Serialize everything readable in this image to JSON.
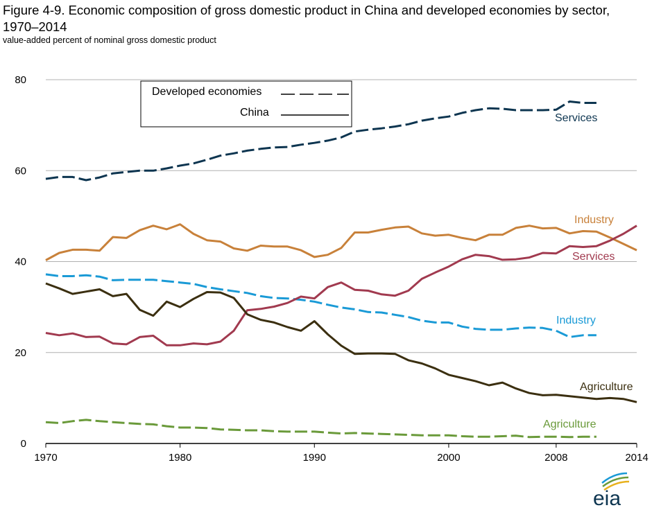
{
  "title": "Figure 4-9. Economic composition of gross domestic product in China and developed economies by sector, 1970–2014",
  "subtitle": "value-added percent of nominal gross domestic product",
  "logo_text": "eia",
  "colors": {
    "services_dev": "#0d3550",
    "services_china": "#a13a4f",
    "industry_dev": "#1a9ad6",
    "industry_china": "#c8813a",
    "agriculture_dev": "#6a9a3a",
    "agriculture_china": "#3b2f10",
    "grid": "#b0b0b0"
  },
  "chart_data": {
    "type": "line",
    "title": "Figure 4-9. Economic composition of gross domestic product in China and developed economies by sector, 1970–2014",
    "subtitle": "value-added percent of nominal gross domestic product",
    "xlabel": "",
    "ylabel": "",
    "xlim": [
      1970,
      2014
    ],
    "ylim": [
      0,
      80
    ],
    "x_ticks": [
      "1970",
      "1980",
      "1990",
      "2000",
      "2008",
      "2014"
    ],
    "y_ticks": [
      "0",
      "20",
      "40",
      "60",
      "80"
    ],
    "grid": "horizontal",
    "legend": {
      "placement": "top-left",
      "entries": [
        {
          "label": "Developed economies",
          "style": "dashed"
        },
        {
          "label": "China",
          "style": "solid"
        }
      ]
    },
    "series": [
      {
        "name": "Services",
        "group": "Developed economies",
        "style": "dashed",
        "color": "#0d3550",
        "x": [
          1970,
          1971,
          1972,
          1973,
          1974,
          1975,
          1976,
          1977,
          1978,
          1979,
          1980,
          1981,
          1982,
          1983,
          1984,
          1985,
          1986,
          1987,
          1988,
          1989,
          1990,
          1991,
          1992,
          1993,
          1994,
          1995,
          1996,
          1997,
          1998,
          1999,
          2000,
          2001,
          2002,
          2003,
          2004,
          2005,
          2006,
          2007,
          2008,
          2009,
          2010,
          2011
        ],
        "values": [
          58.2,
          58.6,
          58.6,
          57.9,
          58.5,
          59.4,
          59.7,
          60.0,
          60.0,
          60.5,
          61.1,
          61.6,
          62.4,
          63.3,
          63.8,
          64.4,
          64.8,
          65.1,
          65.2,
          65.7,
          66.1,
          66.6,
          67.3,
          68.6,
          69.0,
          69.3,
          69.7,
          70.2,
          71.0,
          71.5,
          71.9,
          72.7,
          73.3,
          73.7,
          73.6,
          73.3,
          73.3,
          73.3,
          73.4,
          75.2,
          74.9,
          74.9
        ]
      },
      {
        "name": "Industry",
        "group": "Developed economies",
        "style": "dashed",
        "color": "#1a9ad6",
        "x": [
          1970,
          1971,
          1972,
          1973,
          1974,
          1975,
          1976,
          1977,
          1978,
          1979,
          1980,
          1981,
          1982,
          1983,
          1984,
          1985,
          1986,
          1987,
          1988,
          1989,
          1990,
          1991,
          1992,
          1993,
          1994,
          1995,
          1996,
          1997,
          1998,
          1999,
          2000,
          2001,
          2002,
          2003,
          2004,
          2005,
          2006,
          2007,
          2008,
          2009,
          2010,
          2011
        ],
        "values": [
          37.2,
          36.8,
          36.8,
          37.0,
          36.7,
          35.9,
          36.0,
          36.0,
          36.0,
          35.7,
          35.4,
          35.1,
          34.4,
          33.9,
          33.5,
          33.1,
          32.4,
          32.0,
          31.9,
          31.6,
          31.2,
          30.5,
          29.9,
          29.5,
          28.9,
          28.8,
          28.3,
          27.8,
          27.0,
          26.6,
          26.6,
          25.7,
          25.2,
          25.0,
          25.0,
          25.3,
          25.5,
          25.4,
          24.8,
          23.4,
          23.8,
          23.8
        ]
      },
      {
        "name": "Agriculture",
        "group": "Developed economies",
        "style": "dashed",
        "color": "#6a9a3a",
        "x": [
          1970,
          1971,
          1972,
          1973,
          1974,
          1975,
          1976,
          1977,
          1978,
          1979,
          1980,
          1981,
          1982,
          1983,
          1984,
          1985,
          1986,
          1987,
          1988,
          1989,
          1990,
          1991,
          1992,
          1993,
          1994,
          1995,
          1996,
          1997,
          1998,
          1999,
          2000,
          2001,
          2002,
          2003,
          2004,
          2005,
          2006,
          2007,
          2008,
          2009,
          2010,
          2011
        ],
        "values": [
          4.7,
          4.5,
          4.9,
          5.2,
          4.9,
          4.7,
          4.5,
          4.3,
          4.2,
          3.8,
          3.5,
          3.5,
          3.4,
          3.1,
          3.0,
          2.9,
          2.9,
          2.7,
          2.6,
          2.6,
          2.6,
          2.4,
          2.2,
          2.3,
          2.2,
          2.1,
          2.0,
          1.9,
          1.8,
          1.8,
          1.8,
          1.6,
          1.5,
          1.5,
          1.6,
          1.7,
          1.4,
          1.5,
          1.5,
          1.4,
          1.5,
          1.5
        ]
      },
      {
        "name": "Industry",
        "group": "China",
        "style": "solid",
        "color": "#c8813a",
        "x": [
          1970,
          1971,
          1972,
          1973,
          1974,
          1975,
          1976,
          1977,
          1978,
          1979,
          1980,
          1981,
          1982,
          1983,
          1984,
          1985,
          1986,
          1987,
          1988,
          1989,
          1990,
          1991,
          1992,
          1993,
          1994,
          1995,
          1996,
          1997,
          1998,
          1999,
          2000,
          2001,
          2002,
          2003,
          2004,
          2005,
          2006,
          2007,
          2008,
          2009,
          2010,
          2011,
          2012,
          2013,
          2014
        ],
        "values": [
          40.3,
          41.9,
          42.6,
          42.6,
          42.4,
          45.4,
          45.2,
          46.9,
          47.9,
          47.1,
          48.2,
          46.1,
          44.7,
          44.4,
          42.9,
          42.4,
          43.5,
          43.3,
          43.3,
          42.5,
          41.0,
          41.5,
          43.0,
          46.4,
          46.4,
          47.0,
          47.5,
          47.7,
          46.2,
          45.7,
          45.9,
          45.2,
          44.7,
          45.9,
          45.9,
          47.4,
          47.9,
          47.3,
          47.4,
          46.2,
          46.7,
          46.6,
          45.3,
          43.9,
          42.5
        ]
      },
      {
        "name": "Services",
        "group": "China",
        "style": "solid",
        "color": "#a13a4f",
        "x": [
          1970,
          1971,
          1972,
          1973,
          1974,
          1975,
          1976,
          1977,
          1978,
          1979,
          1980,
          1981,
          1982,
          1983,
          1984,
          1985,
          1986,
          1987,
          1988,
          1989,
          1990,
          1991,
          1992,
          1993,
          1994,
          1995,
          1996,
          1997,
          1998,
          1999,
          2000,
          2001,
          2002,
          2003,
          2004,
          2005,
          2006,
          2007,
          2008,
          2009,
          2010,
          2011,
          2012,
          2013,
          2014
        ],
        "values": [
          24.3,
          23.8,
          24.2,
          23.4,
          23.5,
          22.0,
          21.8,
          23.4,
          23.7,
          21.6,
          21.6,
          22.0,
          21.8,
          22.4,
          24.8,
          29.3,
          29.6,
          30.1,
          30.9,
          32.3,
          31.9,
          34.4,
          35.4,
          33.8,
          33.6,
          32.8,
          32.5,
          33.6,
          36.2,
          37.6,
          38.9,
          40.5,
          41.5,
          41.2,
          40.4,
          40.5,
          40.9,
          41.9,
          41.8,
          43.4,
          43.2,
          43.4,
          44.6,
          46.1,
          47.9
        ]
      },
      {
        "name": "Agriculture",
        "group": "China",
        "style": "solid",
        "color": "#3b2f10",
        "x": [
          1970,
          1971,
          1972,
          1973,
          1974,
          1975,
          1976,
          1977,
          1978,
          1979,
          1980,
          1981,
          1982,
          1983,
          1984,
          1985,
          1986,
          1987,
          1988,
          1989,
          1990,
          1991,
          1992,
          1993,
          1994,
          1995,
          1996,
          1997,
          1998,
          1999,
          2000,
          2001,
          2002,
          2003,
          2004,
          2005,
          2006,
          2007,
          2008,
          2009,
          2010,
          2011,
          2012,
          2013,
          2014
        ],
        "values": [
          35.2,
          34.1,
          32.9,
          33.4,
          33.9,
          32.4,
          32.9,
          29.4,
          28.1,
          31.2,
          30.0,
          31.8,
          33.3,
          33.2,
          32.0,
          28.4,
          27.2,
          26.6,
          25.6,
          24.8,
          26.9,
          24.0,
          21.5,
          19.7,
          19.8,
          19.8,
          19.7,
          18.3,
          17.6,
          16.5,
          15.1,
          14.4,
          13.7,
          12.8,
          13.4,
          12.1,
          11.1,
          10.6,
          10.7,
          10.4,
          10.1,
          9.8,
          10.0,
          9.8,
          9.1
        ]
      }
    ],
    "annotations": [
      {
        "text": "Services",
        "series": "Services (Developed economies)"
      },
      {
        "text": "Industry",
        "series": "Industry (China)"
      },
      {
        "text": "Services",
        "series": "Services (China)"
      },
      {
        "text": "Industry",
        "series": "Industry (Developed economies)"
      },
      {
        "text": "Agriculture",
        "series": "Agriculture (China)"
      },
      {
        "text": "Agriculture",
        "series": "Agriculture (Developed economies)"
      }
    ]
  }
}
